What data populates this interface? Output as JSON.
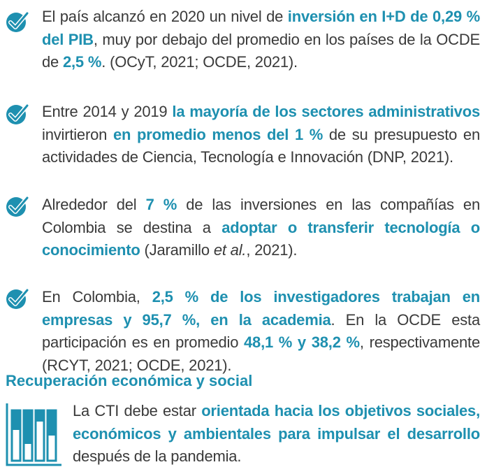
{
  "colors": {
    "accent": "#1e90b0",
    "text": "#3a3a3a"
  },
  "items": [
    {
      "icon": "check-icon",
      "parts": [
        {
          "t": "El país alcanzó en 2020 un nivel de ",
          "s": "n"
        },
        {
          "t": "inversión en I+D de 0,29 % del PIB",
          "s": "h"
        },
        {
          "t": ", muy por debajo del promedio en los países de la OCDE de ",
          "s": "n"
        },
        {
          "t": "2,5 %",
          "s": "h"
        },
        {
          "t": ". (OCyT, 2021; OCDE, 2021).",
          "s": "n"
        }
      ]
    },
    {
      "icon": "check-icon",
      "parts": [
        {
          "t": "Entre 2014 y 2019 ",
          "s": "n"
        },
        {
          "t": "la mayoría de los sectores administrativos",
          "s": "h"
        },
        {
          "t": " invirtieron ",
          "s": "n"
        },
        {
          "t": "en promedio menos del 1 %",
          "s": "h"
        },
        {
          "t": " de su presupuesto en actividades de Ciencia, Tecnología e Innovación (DNP, 2021).",
          "s": "n"
        }
      ]
    },
    {
      "icon": "check-icon",
      "parts": [
        {
          "t": "Alrededor del ",
          "s": "n"
        },
        {
          "t": "7 %",
          "s": "h"
        },
        {
          "t": " de las inversiones en las compañías en Colombia se destina a ",
          "s": "n"
        },
        {
          "t": "adoptar o transferir tecnología o conocimiento",
          "s": "h"
        },
        {
          "t": " (Jaramillo ",
          "s": "n"
        },
        {
          "t": "et al.",
          "s": "i"
        },
        {
          "t": ", 2021).",
          "s": "n"
        }
      ]
    },
    {
      "icon": "check-icon",
      "parts": [
        {
          "t": "En Colombia, ",
          "s": "n"
        },
        {
          "t": "2,5 % de los investigadores trabajan en empresas y 95,7 %, en la academia",
          "s": "h"
        },
        {
          "t": ". En la OCDE esta participación es en promedio ",
          "s": "n"
        },
        {
          "t": "48,1 % y 38,2 %",
          "s": "h"
        },
        {
          "t": ", respectivamente (RCYT, 2021; OCDE, 2021).",
          "s": "n"
        }
      ]
    }
  ],
  "section": {
    "title": "Recuperación económica y social",
    "icon": "bar-chart-icon",
    "parts": [
      {
        "t": "La CTI debe estar ",
        "s": "n"
      },
      {
        "t": "orientada hacia los objetivos sociales, económicos y ambientales para impulsar el desarrollo",
        "s": "h"
      },
      {
        "t": " después de la pandemia.",
        "s": "n"
      }
    ]
  }
}
